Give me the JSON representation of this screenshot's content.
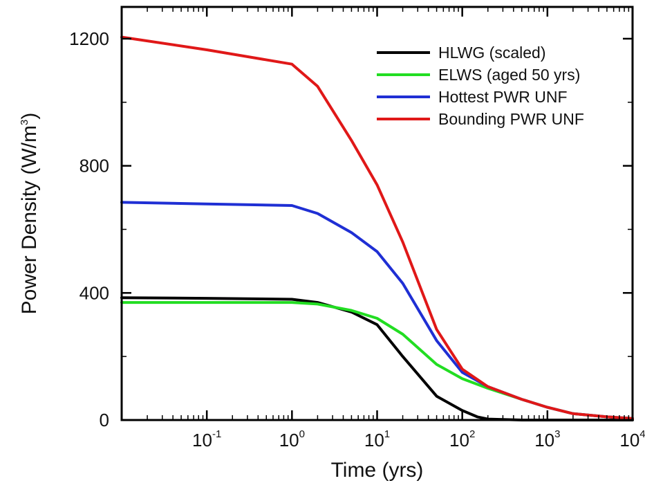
{
  "chart_data": {
    "type": "line",
    "xlabel": "Time (yrs)",
    "ylabel": "Power Density (W/m3)",
    "ylabel_parts": {
      "base": "Power Density (W/m",
      "sup": "3",
      "close": ")"
    },
    "x_scale": "log",
    "xlim": [
      0.01,
      10000
    ],
    "ylim": [
      0,
      1300
    ],
    "x_ticks": [
      {
        "value": 0.1,
        "base": "10",
        "exp": "-1"
      },
      {
        "value": 1,
        "base": "10",
        "exp": "0"
      },
      {
        "value": 10,
        "base": "10",
        "exp": "1"
      },
      {
        "value": 100,
        "base": "10",
        "exp": "2"
      },
      {
        "value": 1000,
        "base": "10",
        "exp": "3"
      },
      {
        "value": 10000,
        "base": "10",
        "exp": "4"
      }
    ],
    "y_ticks": [
      {
        "value": 0,
        "label": "0"
      },
      {
        "value": 400,
        "label": "400"
      },
      {
        "value": 800,
        "label": "800"
      },
      {
        "value": 1200,
        "label": "1200"
      }
    ],
    "legend_position": "top-right",
    "grid": false,
    "series": [
      {
        "name": "HLWG (scaled)",
        "color": "#000000",
        "x": [
          0.01,
          0.1,
          1,
          2,
          5,
          10,
          20,
          50,
          100,
          150,
          200,
          500,
          1000,
          10000
        ],
        "y": [
          385,
          383,
          380,
          370,
          340,
          300,
          200,
          75,
          30,
          10,
          3,
          0,
          0,
          0
        ]
      },
      {
        "name": "ELWS (aged 50 yrs)",
        "color": "#22dd22",
        "x": [
          0.01,
          0.1,
          1,
          2,
          5,
          10,
          20,
          50,
          100,
          200,
          500,
          1000,
          2000,
          5000,
          10000
        ],
        "y": [
          370,
          370,
          370,
          365,
          345,
          320,
          270,
          175,
          130,
          100,
          65,
          40,
          20,
          10,
          5
        ]
      },
      {
        "name": "Hottest PWR UNF",
        "color": "#1f2fd4",
        "x": [
          0.01,
          0.1,
          1,
          2,
          5,
          10,
          20,
          50,
          100,
          200,
          500,
          1000,
          2000,
          5000,
          10000
        ],
        "y": [
          685,
          680,
          675,
          650,
          590,
          530,
          430,
          250,
          150,
          105,
          65,
          40,
          20,
          10,
          5
        ]
      },
      {
        "name": "Bounding PWR UNF",
        "color": "#e01818",
        "x": [
          0.01,
          0.1,
          1,
          2,
          5,
          10,
          20,
          50,
          100,
          200,
          500,
          1000,
          2000,
          5000,
          10000
        ],
        "y": [
          1205,
          1165,
          1120,
          1050,
          880,
          740,
          560,
          285,
          160,
          105,
          65,
          40,
          20,
          10,
          5
        ]
      }
    ]
  }
}
